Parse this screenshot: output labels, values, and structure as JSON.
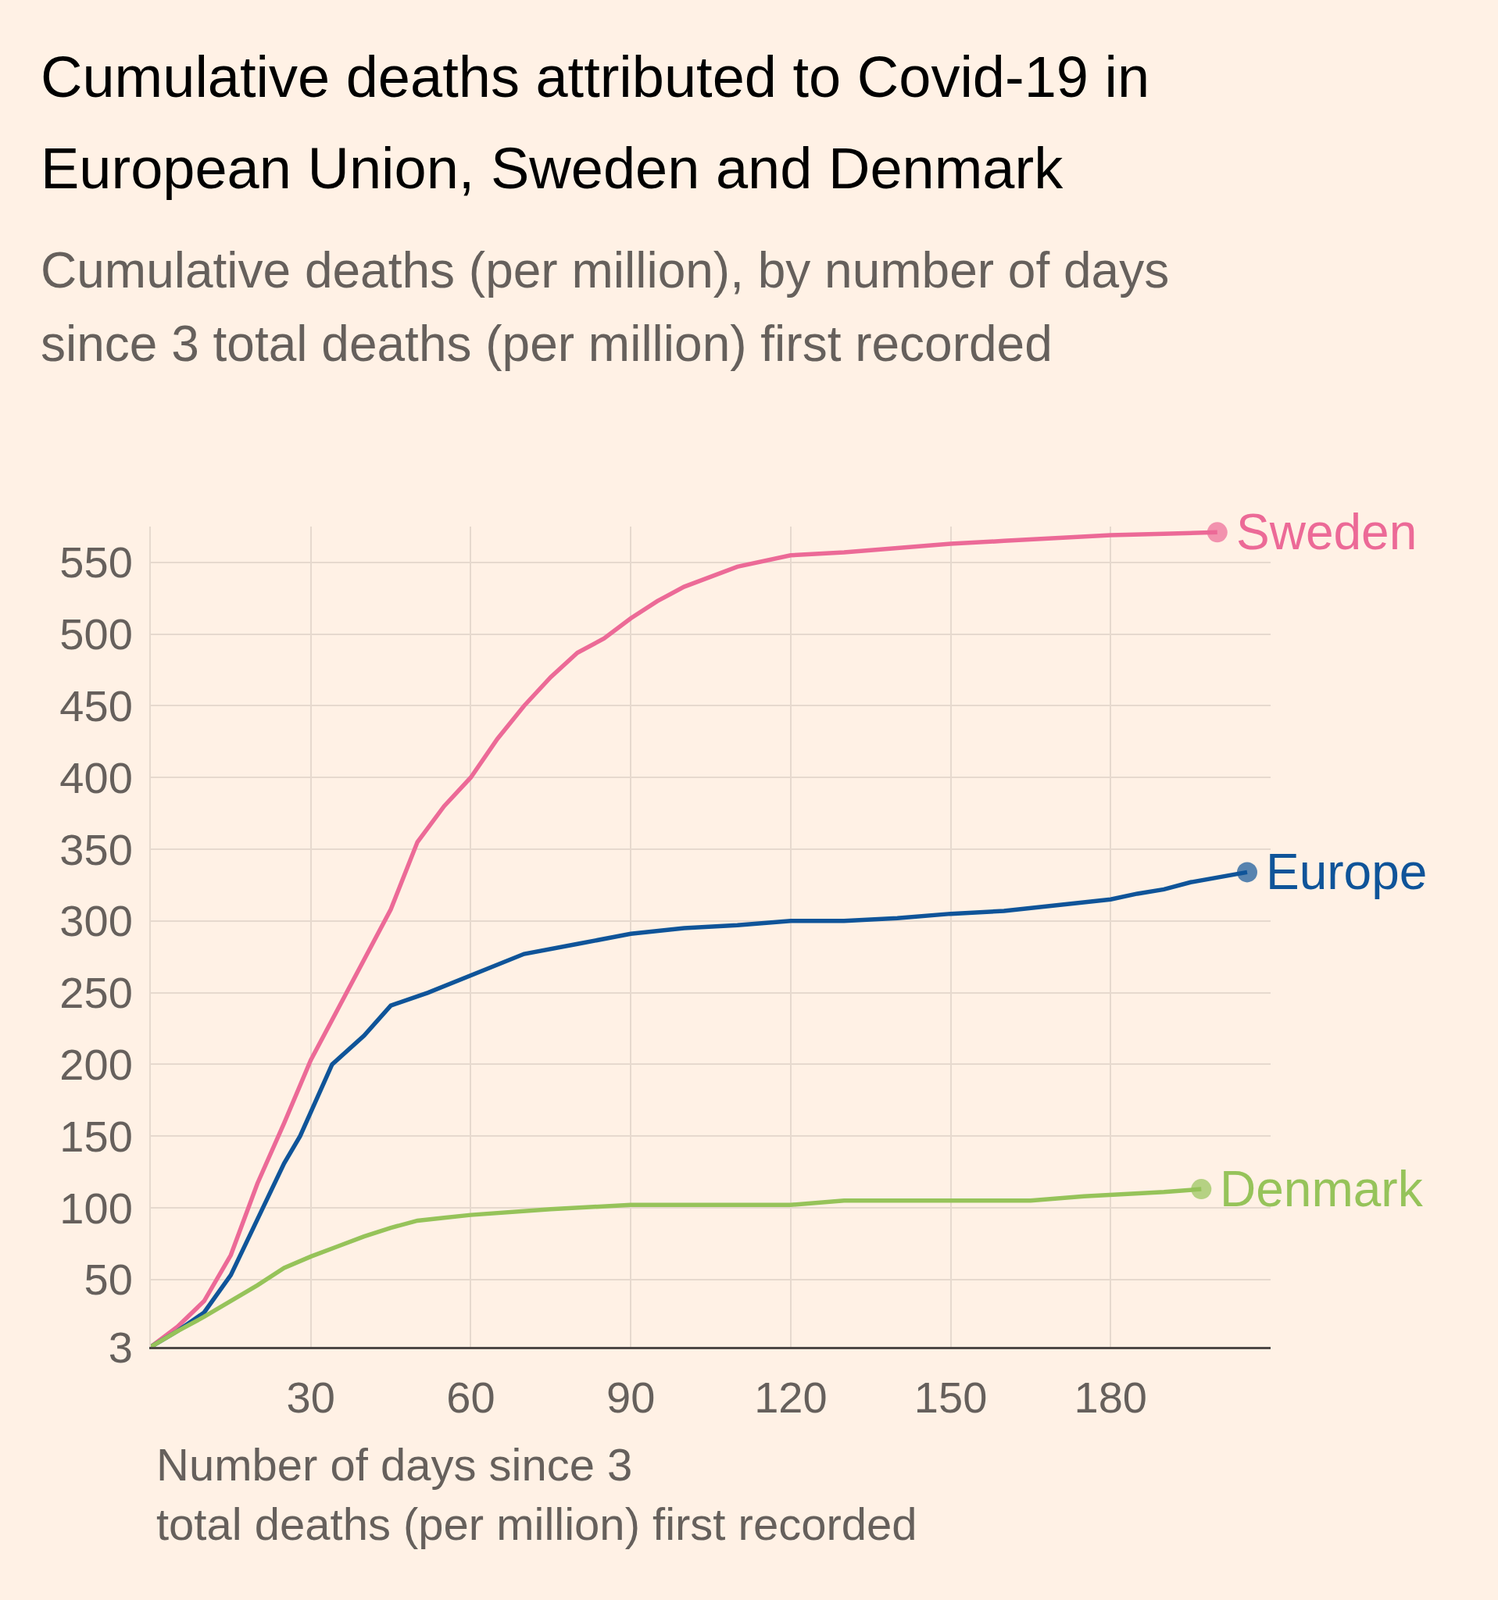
{
  "chart_data": {
    "type": "line",
    "title": "Cumulative deaths attributed to Covid-19 in\nEuropean Union, Sweden and Denmark",
    "subtitle": "Cumulative deaths (per million), by number of days\nsince 3 total deaths (per million) first recorded",
    "x_label": "Number of days since 3\ntotal deaths (per million) first recorded",
    "xlim": [
      0,
      210
    ],
    "ylim": [
      3,
      575
    ],
    "xticks": [
      30,
      60,
      90,
      120,
      150,
      180
    ],
    "yticks": [
      3,
      50,
      100,
      150,
      200,
      250,
      300,
      350,
      400,
      450,
      500,
      550
    ],
    "grid": true,
    "marker": "circle",
    "series": [
      {
        "name": "Sweden",
        "color": "#ec6a97",
        "x": [
          0,
          5,
          10,
          15,
          20,
          25,
          30,
          35,
          40,
          45,
          50,
          55,
          60,
          65,
          70,
          75,
          80,
          85,
          90,
          95,
          100,
          110,
          120,
          130,
          140,
          150,
          160,
          170,
          180,
          190,
          200
        ],
        "values": [
          3,
          17,
          35,
          67,
          117,
          159,
          203,
          238,
          273,
          308,
          355,
          380,
          400,
          427,
          450,
          470,
          487,
          497,
          511,
          523,
          533,
          547,
          555,
          557,
          560,
          563,
          565,
          567,
          569,
          570,
          571
        ]
      },
      {
        "name": "Europe",
        "color": "#0f5499",
        "x": [
          0,
          5,
          10,
          15,
          20,
          25,
          28,
          30,
          34,
          40,
          45,
          52,
          60,
          70,
          80,
          90,
          100,
          110,
          120,
          130,
          140,
          150,
          160,
          170,
          180,
          185,
          190,
          195,
          200,
          205.6
        ],
        "values": [
          3,
          14,
          27,
          53,
          92,
          131,
          150,
          167,
          200,
          220,
          241,
          250,
          262,
          277,
          284,
          291,
          295,
          297,
          300,
          300,
          302,
          305,
          307,
          311,
          315,
          319,
          322,
          327,
          330,
          334
        ]
      },
      {
        "name": "Denmark",
        "color": "#96c35a",
        "x": [
          0,
          5,
          10,
          15,
          20,
          25,
          30,
          35,
          40,
          45,
          50,
          55,
          60,
          75,
          90,
          120,
          130,
          165,
          175,
          190,
          197
        ],
        "values": [
          3,
          14,
          24,
          35,
          46,
          58,
          66,
          73,
          80,
          86,
          91,
          93,
          95,
          99,
          102,
          102,
          105,
          105,
          108,
          111,
          113
        ]
      }
    ]
  }
}
